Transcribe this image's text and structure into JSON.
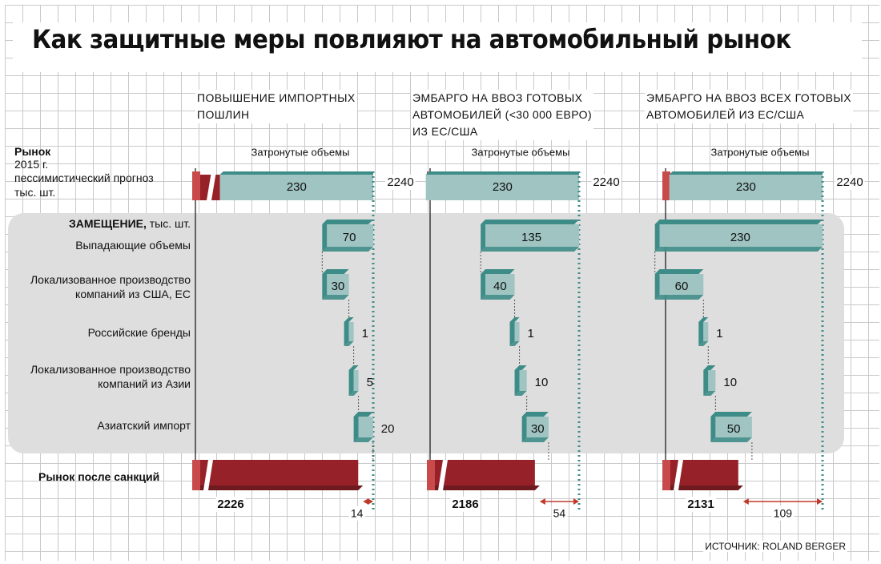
{
  "title": "Как защитные меры повлияют на автомобильный рынок",
  "source": "ИСТОЧНИК: ROLAND BERGER",
  "row_labels": {
    "market_l1": "Рынок",
    "market_l2": "2015 г.",
    "market_l3": "пессимистический прогноз",
    "market_l4": "тыс. шт.",
    "replacement_bold": "ЗАМЕЩЕНИЕ,",
    "replacement_unit": " тыс. шт.",
    "lost_volumes": "Выпадающие объемы",
    "loc_us_eu_l1": "Локализованное  производство",
    "loc_us_eu_l2": "компаний из США, ЕС",
    "russian_brands": "Российские бренды",
    "loc_asia_l1": "Локализованное  производство",
    "loc_asia_l2": "компаний из Азии",
    "asian_import": "Азиатский импорт",
    "after_sanctions": "Рынок после санкций"
  },
  "affected_label": "Затронутые объемы",
  "colors": {
    "teal": "#9fc4c2",
    "teal_dark": "#3e8c87",
    "red": "#962128",
    "red_light": "#c84a4a",
    "grid": "#c9c9c9",
    "shade": "#dedede"
  },
  "chart_data": {
    "type": "bar",
    "rows": [
      "Рынок 2015 г. пессимистический прогноз",
      "Выпадающие объемы",
      "Локализованное производство компаний из США, ЕС",
      "Российские бренды",
      "Локализованное производство компаний из Азии",
      "Азиатский импорт",
      "Рынок после санкций"
    ],
    "scenarios": [
      {
        "header": [
          "ПОВЫШЕНИЕ ИМПОРТНЫХ",
          "ПОШЛИН"
        ],
        "market_total": "2240",
        "affected": "230",
        "lost": "70",
        "replacement": [
          "30",
          "1",
          "5",
          "20"
        ],
        "after_market": "2226",
        "difference": "14"
      },
      {
        "header": [
          "ЭМБАРГО НА ВВОЗ ГОТОВЫХ",
          "АВТОМОБИЛЕЙ (<30 000 ЕВРО)",
          "ИЗ ЕС/США"
        ],
        "market_total": "2240",
        "affected": "230",
        "lost": "135",
        "replacement": [
          "40",
          "1",
          "10",
          "30"
        ],
        "after_market": "2186",
        "difference": "54"
      },
      {
        "header": [
          "ЭМБАРГО НА ВВОЗ ВСЕХ ГОТОВЫХ",
          "АВТОМОБИЛЕЙ ИЗ ЕС/США"
        ],
        "market_total": "2240",
        "affected": "230",
        "lost": "230",
        "replacement": [
          "60",
          "1",
          "10",
          "50"
        ],
        "after_market": "2131",
        "difference": "109"
      }
    ]
  }
}
